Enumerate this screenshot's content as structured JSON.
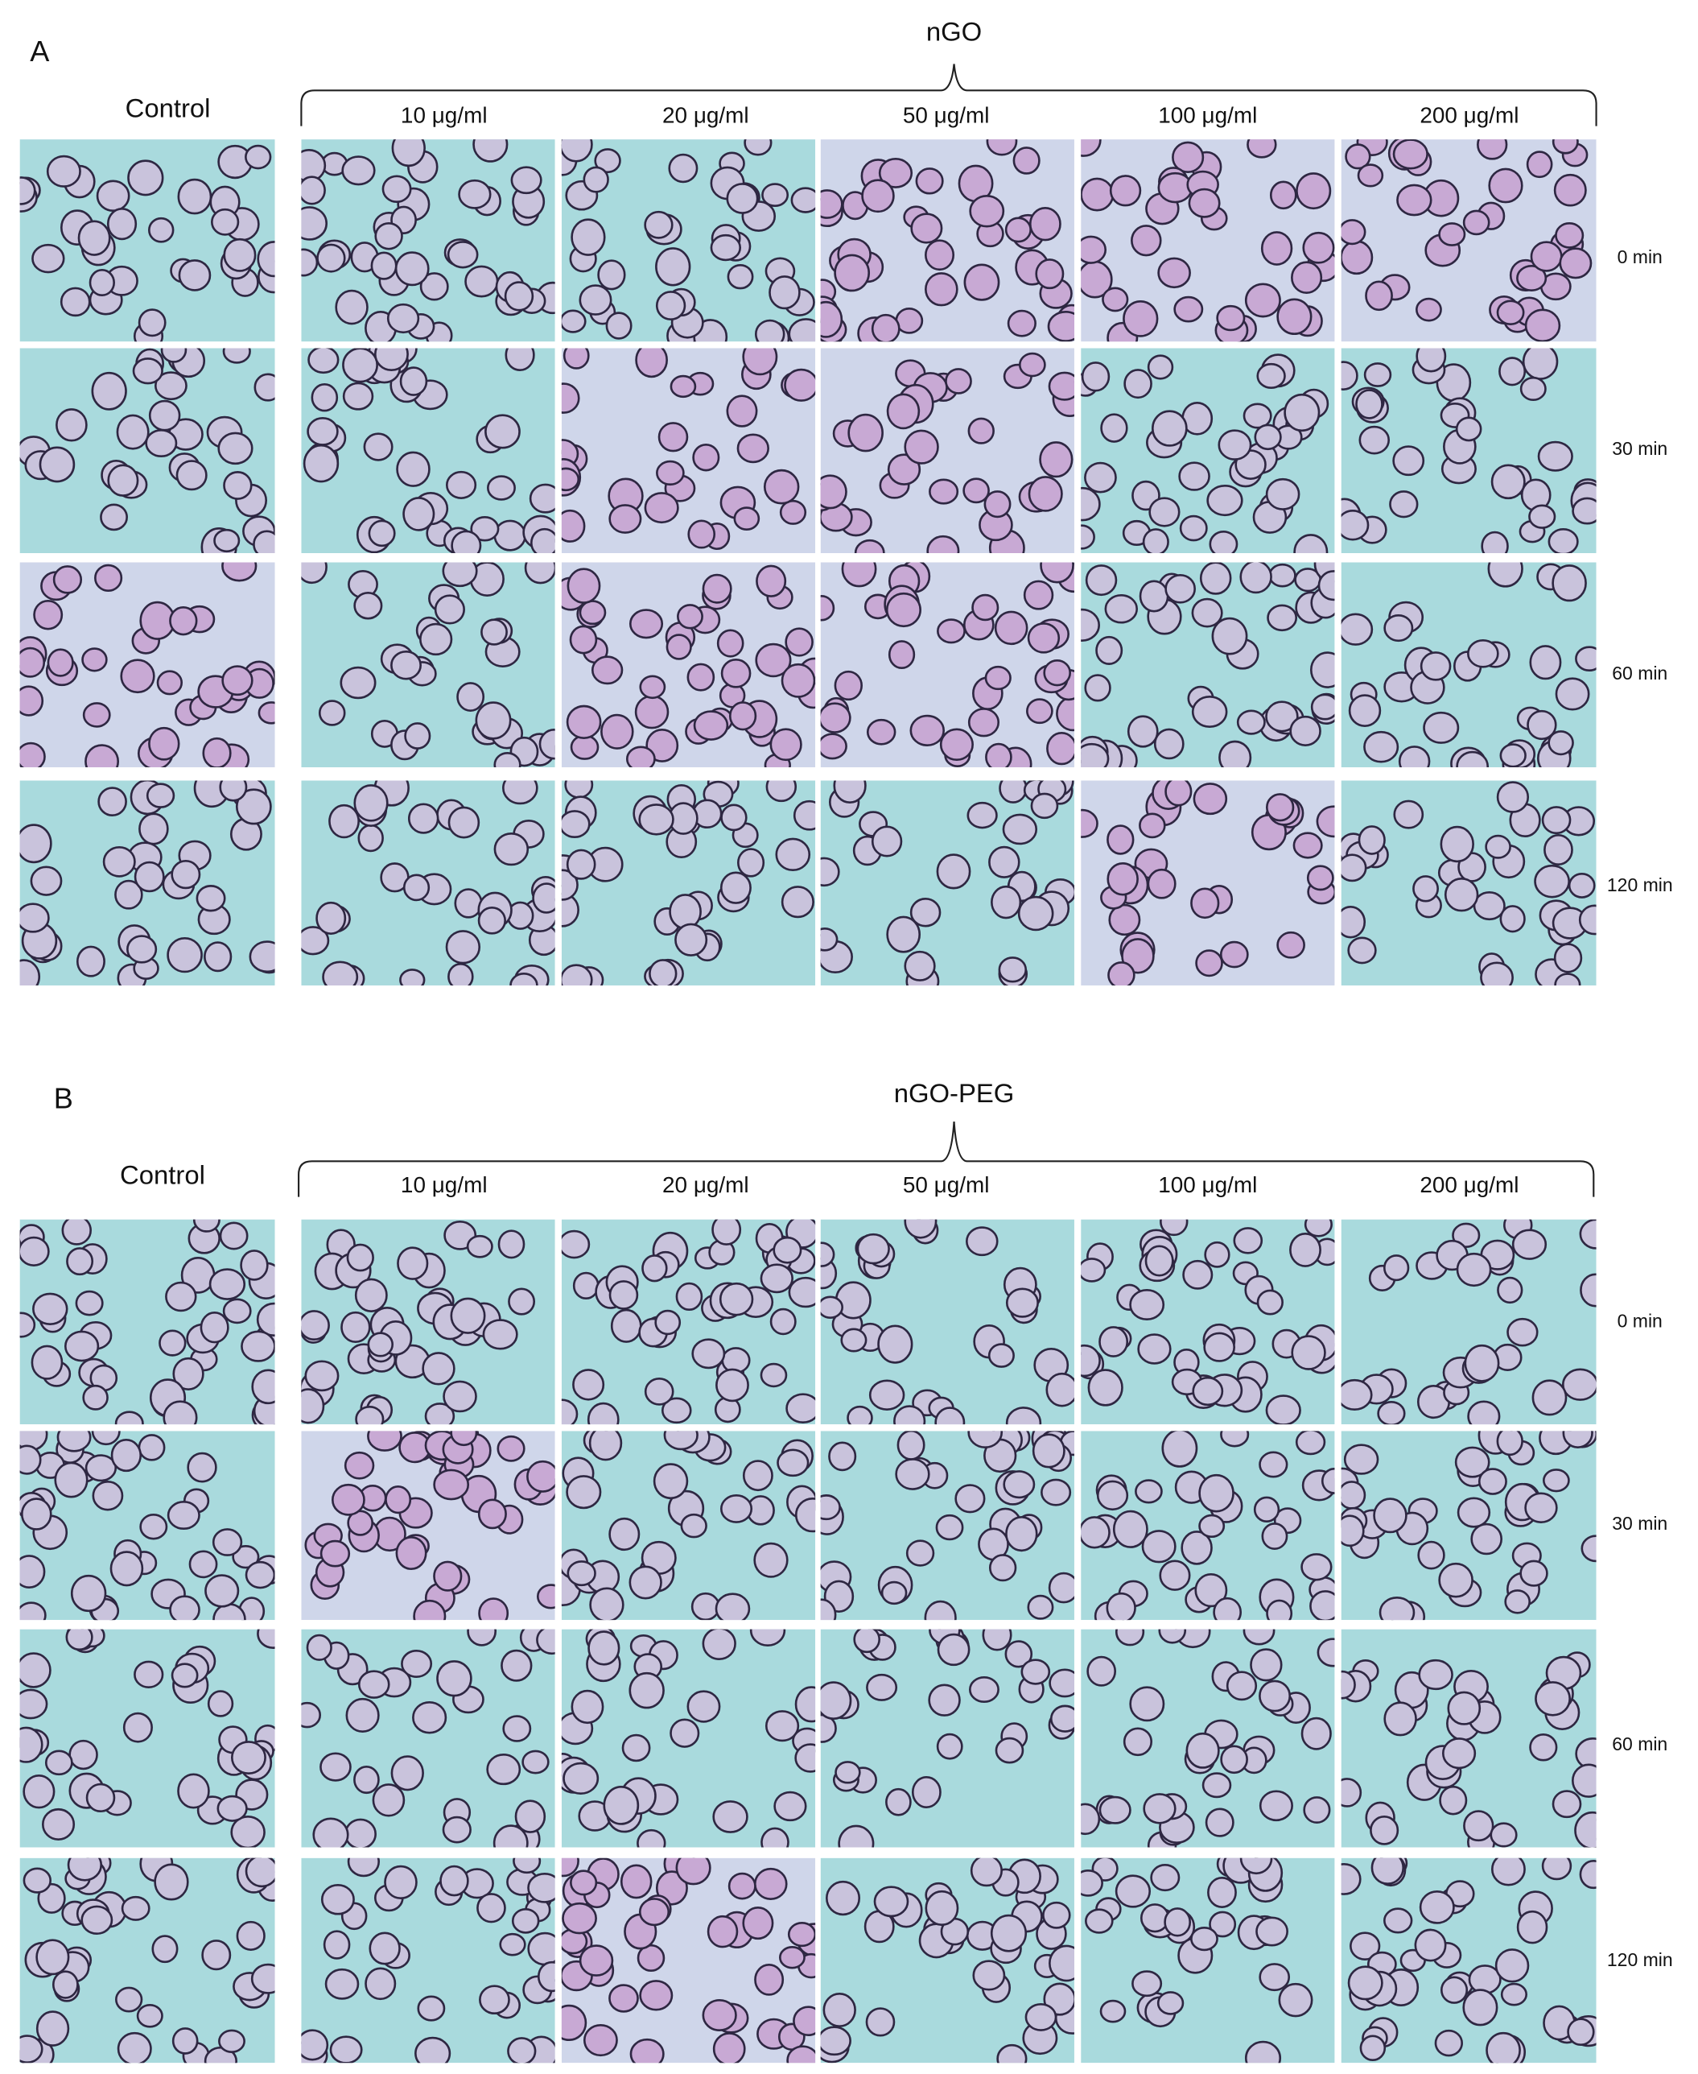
{
  "panels": [
    {
      "label": "A",
      "group": "nGO",
      "control": "Control",
      "concentrations": [
        "10 μg/ml",
        "20 μg/ml",
        "50 μg/ml",
        "100 μg/ml",
        "200 μg/ml"
      ],
      "times": [
        "0 min",
        "30 min",
        "60 min",
        "120 min"
      ]
    },
    {
      "label": "B",
      "group": "nGO-PEG",
      "control": "Control",
      "concentrations": [
        "10 μg/ml",
        "20 μg/ml",
        "50 μg/ml",
        "100 μg/ml",
        "200 μg/ml"
      ],
      "times": [
        "0 min",
        "30 min",
        "60 min",
        "120 min"
      ]
    }
  ]
}
